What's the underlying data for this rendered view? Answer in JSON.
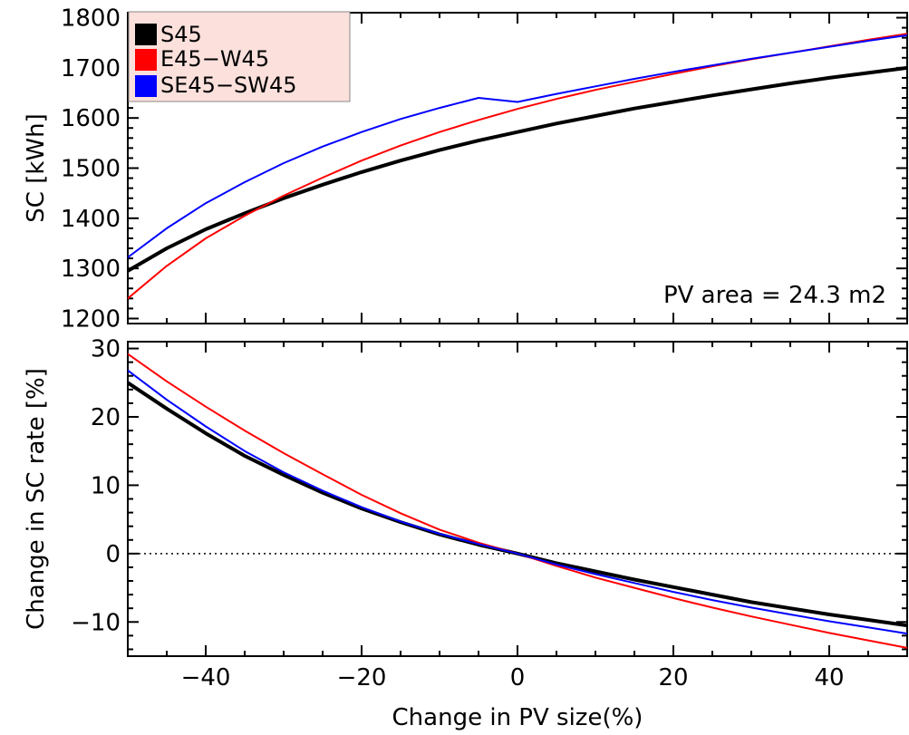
{
  "chart_data": [
    {
      "type": "line",
      "xlim": [
        -50,
        50
      ],
      "ylim": [
        1190,
        1810
      ],
      "x_ticks": [
        -40,
        -20,
        0,
        20,
        40
      ],
      "y_ticks": [
        1200,
        1300,
        1400,
        1500,
        1600,
        1700,
        1800
      ],
      "xlabel": "",
      "ylabel": "SC [kWh]",
      "annotation": "PV area = 24.3 m2",
      "grid": false,
      "legend_position": "top-left",
      "legend": [
        {
          "label": "S45",
          "color": "#000000"
        },
        {
          "label": "E45−W45",
          "color": "#ff0000"
        },
        {
          "label": "SE45−SW45",
          "color": "#0000ff"
        }
      ],
      "x": [
        -50,
        -45,
        -40,
        -35,
        -30,
        -25,
        -20,
        -15,
        -10,
        -5,
        0,
        5,
        10,
        15,
        20,
        25,
        30,
        35,
        40,
        45,
        50
      ],
      "series": [
        {
          "name": "S45",
          "color": "#000000",
          "values": [
            1295,
            1340,
            1378,
            1410,
            1440,
            1467,
            1492,
            1515,
            1536,
            1555,
            1572,
            1589,
            1604,
            1619,
            1632,
            1645,
            1657,
            1669,
            1680,
            1690,
            1700
          ]
        },
        {
          "name": "E45−W45",
          "color": "#ff0000",
          "values": [
            1240,
            1305,
            1360,
            1405,
            1445,
            1481,
            1515,
            1545,
            1572,
            1596,
            1618,
            1638,
            1656,
            1672,
            1688,
            1703,
            1717,
            1730,
            1743,
            1756,
            1768
          ]
        },
        {
          "name": "SE45−SW45",
          "color": "#0000ff",
          "values": [
            1322,
            1380,
            1430,
            1472,
            1510,
            1543,
            1572,
            1598,
            1620,
            1640,
            1632,
            1648,
            1663,
            1678,
            1692,
            1705,
            1718,
            1730,
            1742,
            1754,
            1765
          ]
        }
      ]
    },
    {
      "type": "line",
      "xlim": [
        -50,
        50
      ],
      "ylim": [
        -15,
        31
      ],
      "x_ticks": [
        -40,
        -20,
        0,
        20,
        40
      ],
      "y_ticks": [
        -10,
        0,
        10,
        20,
        30
      ],
      "xlabel": "Change in PV size(%)",
      "ylabel": "Change in SC rate [%]",
      "grid": false,
      "zero_line": true,
      "x": [
        -50,
        -45,
        -40,
        -35,
        -30,
        -25,
        -20,
        -15,
        -10,
        -5,
        0,
        5,
        10,
        15,
        20,
        25,
        30,
        35,
        40,
        45,
        50
      ],
      "series": [
        {
          "name": "S45",
          "color": "#000000",
          "values": [
            25.0,
            21.2,
            17.6,
            14.3,
            11.5,
            8.9,
            6.6,
            4.6,
            2.8,
            1.3,
            0,
            -1.4,
            -2.6,
            -3.8,
            -4.9,
            -6.0,
            -7.1,
            -8.0,
            -8.9,
            -9.7,
            -10.5
          ]
        },
        {
          "name": "E45−W45",
          "color": "#ff0000",
          "values": [
            29.2,
            25.2,
            21.5,
            18.0,
            14.7,
            11.6,
            8.6,
            5.9,
            3.5,
            1.6,
            0,
            -1.8,
            -3.5,
            -5.0,
            -6.5,
            -7.9,
            -9.2,
            -10.4,
            -11.6,
            -12.7,
            -13.8
          ]
        },
        {
          "name": "SE45−SW45",
          "color": "#0000ff",
          "values": [
            26.8,
            22.5,
            18.6,
            15.0,
            11.9,
            9.2,
            6.8,
            4.7,
            2.9,
            1.4,
            0,
            -1.6,
            -3.0,
            -4.3,
            -5.6,
            -6.8,
            -7.9,
            -8.9,
            -9.9,
            -10.8,
            -11.7
          ]
        }
      ]
    }
  ]
}
